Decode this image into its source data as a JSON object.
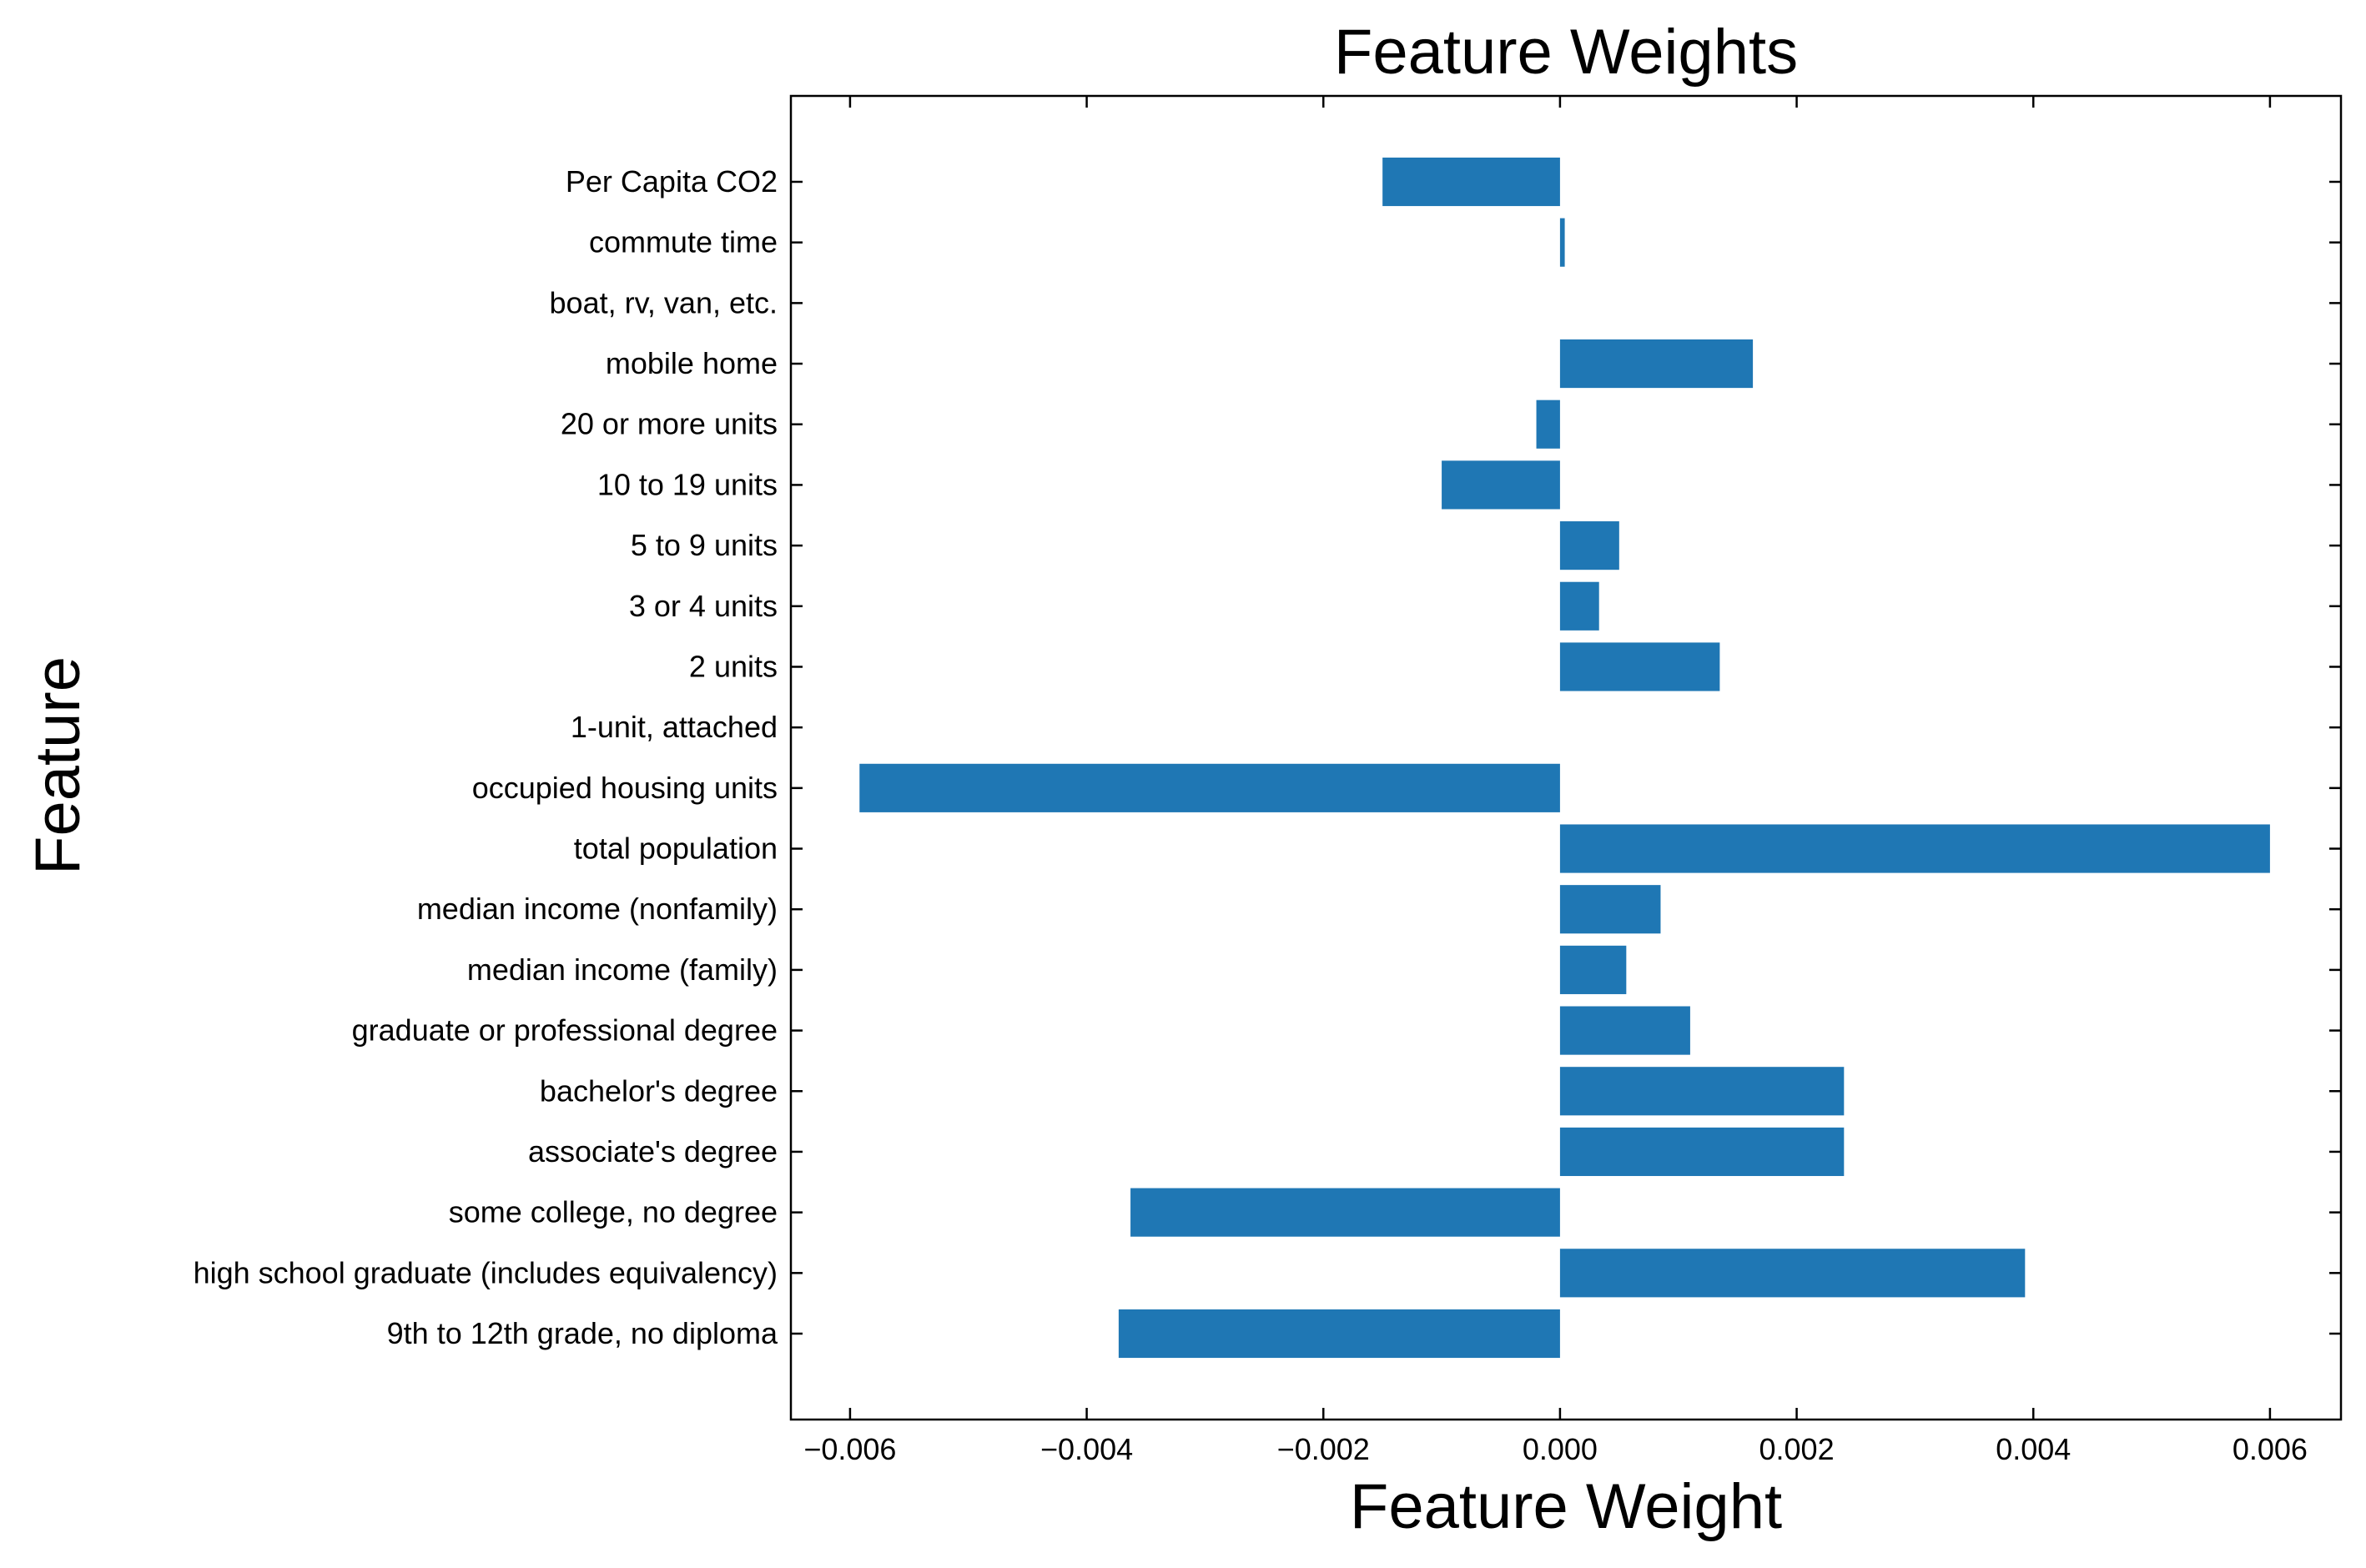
{
  "chart_data": {
    "type": "bar",
    "orientation": "horizontal",
    "title": "Feature Weights",
    "xlabel": "Feature Weight",
    "ylabel": "Feature",
    "xlim": [
      -0.0065,
      0.0066
    ],
    "xticks": [
      -0.006,
      -0.004,
      -0.002,
      0.0,
      0.002,
      0.004,
      0.006
    ],
    "xtick_labels": [
      "−0.006",
      "−0.004",
      "−0.002",
      "0.000",
      "0.002",
      "0.004",
      "0.006"
    ],
    "grid": false,
    "legend": "none",
    "bar_color": "#1f77b4",
    "categories": [
      "9th to 12th grade, no diploma",
      "high school graduate (includes equivalency)",
      "some college, no degree",
      "associate's degree",
      "bachelor's degree",
      "graduate or professional degree",
      "median income (family)",
      "median income (nonfamily)",
      "total population",
      "occupied housing units",
      "1-unit, attached",
      "2 units",
      "3 or 4 units",
      "5 to 9 units",
      "10 to 19 units",
      "20 or more units",
      "mobile home",
      "boat, rv, van, etc.",
      "commute time",
      "Per Capita CO2"
    ],
    "values": [
      -0.00373,
      0.00393,
      -0.00363,
      0.0024,
      0.0024,
      0.0011,
      0.00056,
      0.00085,
      0.006,
      -0.00592,
      0.0,
      0.00135,
      0.00033,
      0.0005,
      -0.001,
      -0.0002,
      0.00163,
      0.0,
      4e-05,
      -0.0015
    ]
  }
}
